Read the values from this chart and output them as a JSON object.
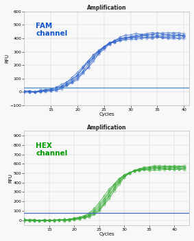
{
  "top_chart": {
    "title": "Amplification",
    "xlabel": "Cycles",
    "ylabel": "RFU",
    "label_text": "FAM\nchannel",
    "label_color": "#1155cc",
    "line_color": "#3366cc",
    "marker_color": "#3366cc",
    "threshold_color": "#4488cc",
    "threshold_y": 30,
    "xlim": [
      10,
      41
    ],
    "ylim": [
      -100,
      600
    ],
    "yticks": [
      -100,
      0,
      100,
      200,
      300,
      400,
      500,
      600
    ],
    "xticks": [
      15,
      20,
      25,
      30,
      35,
      40
    ],
    "x_start": 10,
    "x_end": 40,
    "sigmoid_midpoint": 22.0,
    "sigmoid_scale": 2.2,
    "sigmoid_max": 420,
    "n_curves": 6,
    "midpoint_spread": 0.8,
    "max_spread": 20
  },
  "bottom_chart": {
    "title": "Amplification",
    "xlabel": "Cycles",
    "ylabel": "RFU",
    "label_text": "HEX\nchannel",
    "label_color": "#009900",
    "line_color": "#33aa33",
    "marker_color": "#33aa33",
    "threshold_color": "#4466cc",
    "threshold_y": 75,
    "xlim": [
      10,
      43
    ],
    "ylim": [
      -50,
      950
    ],
    "yticks": [
      0,
      100,
      200,
      300,
      400,
      500,
      600,
      700,
      800,
      900
    ],
    "xticks": [
      15,
      20,
      25,
      30,
      35,
      40
    ],
    "x_start": 10,
    "x_end": 42,
    "sigmoid_midpoint": 27.0,
    "sigmoid_scale": 1.8,
    "sigmoid_max": 560,
    "n_curves": 6,
    "midpoint_spread": 0.8,
    "max_spread": 20
  },
  "bg_color": "#f8f8f8",
  "grid_color": "#cccccc",
  "title_fontsize": 5.5,
  "axis_label_fontsize": 5,
  "tick_fontsize": 4.5,
  "channel_label_fontsize": 7.5
}
